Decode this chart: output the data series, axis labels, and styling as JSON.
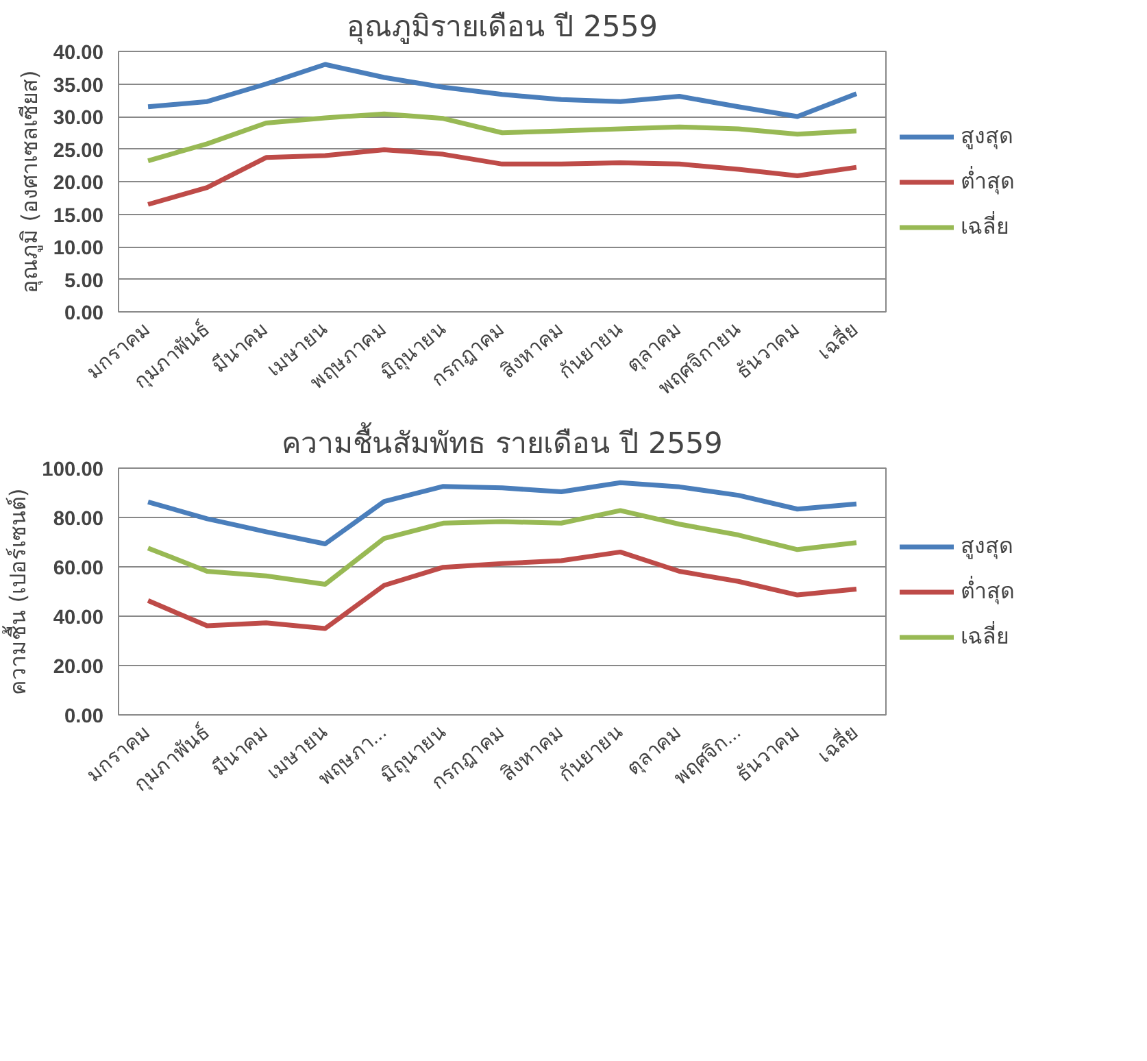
{
  "chart_data": [
    {
      "type": "line",
      "title": "อุณภูมิรายเดือน ปี 2559",
      "ylabel": "อุณภูมิ (องศาเซลเซียส)",
      "categories": [
        "มกราคม",
        "กุมภาพันธ์",
        "มีนาคม",
        "เมษายน",
        "พฤษภาคม",
        "มิถุนายน",
        "กรกฎาคม",
        "สิงหาคม",
        "กันยายน",
        "ตุลาคม",
        "พฤศจิกายน",
        "ธันวาคม",
        "เฉลี่ย"
      ],
      "series": [
        {
          "name": "สูงสุด",
          "color": "#4a7ebb",
          "values": [
            31.5,
            32.3,
            35.0,
            38.0,
            36.0,
            34.5,
            33.4,
            32.6,
            32.3,
            33.1,
            31.5,
            30.0,
            33.5
          ]
        },
        {
          "name": "ต่ำสุด",
          "color": "#be4b48",
          "values": [
            16.5,
            19.1,
            23.7,
            24.0,
            24.9,
            24.2,
            22.7,
            22.7,
            22.9,
            22.7,
            21.9,
            20.9,
            22.2
          ]
        },
        {
          "name": "เฉลี่ย",
          "color": "#98b954",
          "values": [
            23.2,
            25.8,
            29.0,
            29.8,
            30.4,
            29.7,
            27.5,
            27.8,
            28.1,
            28.4,
            28.1,
            27.3,
            27.8
          ]
        }
      ],
      "ylim": [
        0,
        40
      ],
      "yticks": [
        {
          "value": 0,
          "label": "0.00"
        },
        {
          "value": 5,
          "label": "5.00"
        },
        {
          "value": 10,
          "label": "10.00"
        },
        {
          "value": 15,
          "label": "15.00"
        },
        {
          "value": 20,
          "label": "20.00"
        },
        {
          "value": 25,
          "label": "25.00"
        },
        {
          "value": 30,
          "label": "30.00"
        },
        {
          "value": 35,
          "label": "35.00"
        },
        {
          "value": 40,
          "label": "40.00"
        }
      ],
      "grid": "y",
      "legend": "right",
      "marker": "none",
      "line_style": "solid"
    },
    {
      "type": "line",
      "title": "ความชื้นสัมพัทธ รายเดือน ปี 2559",
      "ylabel": "ความชื้น (เปอร์เซนต์)",
      "categories": [
        "มกราคม",
        "กุมภาพันธ์",
        "มีนาคม",
        "เมษายน",
        "พฤษภา...",
        "มิถุนายน",
        "กรกฎาคม",
        "สิงหาคม",
        "กันยายน",
        "ตุลาคม",
        "พฤศจิก...",
        "ธันวาคม",
        "เฉลี่ย"
      ],
      "series": [
        {
          "name": "สูงสุด",
          "color": "#4a7ebb",
          "values": [
            86.3,
            79.5,
            74.2,
            69.3,
            86.5,
            92.6,
            92.0,
            90.4,
            94.1,
            92.4,
            89.0,
            83.4,
            85.5
          ]
        },
        {
          "name": "ต่ำสุด",
          "color": "#be4b48",
          "values": [
            46.3,
            36.1,
            37.3,
            35.0,
            52.5,
            59.8,
            61.3,
            62.5,
            66.0,
            58.2,
            54.1,
            48.6,
            51.0
          ]
        },
        {
          "name": "เฉลี่ย",
          "color": "#98b954",
          "values": [
            67.6,
            58.2,
            56.3,
            52.9,
            71.5,
            77.7,
            78.3,
            77.7,
            82.8,
            77.3,
            72.9,
            67.0,
            69.8
          ]
        }
      ],
      "ylim": [
        0,
        100
      ],
      "yticks": [
        {
          "value": 0,
          "label": "0.00"
        },
        {
          "value": 20,
          "label": "20.00"
        },
        {
          "value": 40,
          "label": "40.00"
        },
        {
          "value": 60,
          "label": "60.00"
        },
        {
          "value": 80,
          "label": "80.00"
        },
        {
          "value": 100,
          "label": "100.00"
        }
      ],
      "grid": "y",
      "legend": "right",
      "marker": "none",
      "line_style": "solid"
    }
  ]
}
